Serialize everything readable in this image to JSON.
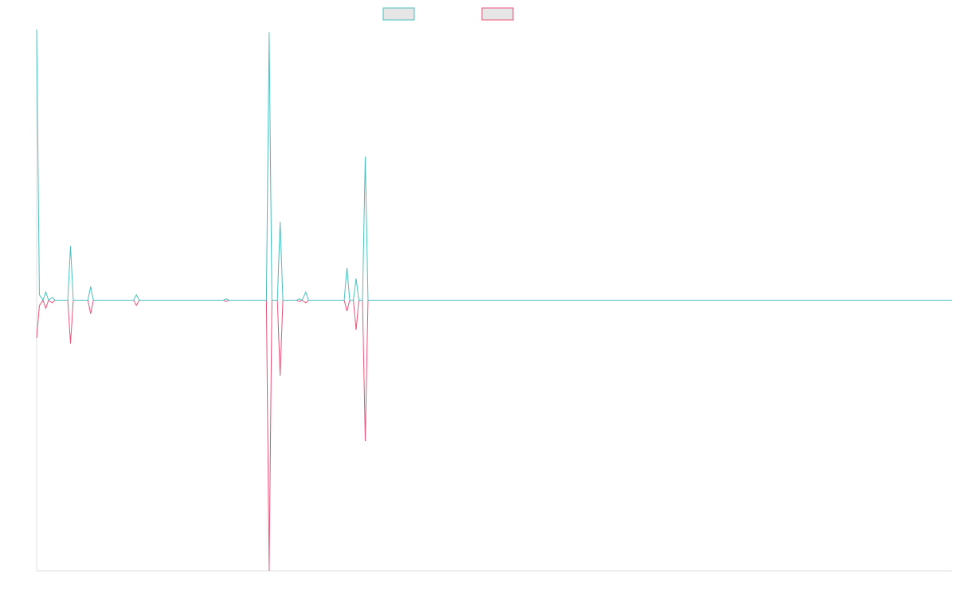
{
  "chart_data": {
    "type": "line",
    "title": "",
    "xlabel": "",
    "ylabel": "",
    "grid": false,
    "legend_position": "top-center",
    "x_range": [
      0,
      100
    ],
    "y_range": [
      -1.0,
      1.0
    ],
    "series": [
      {
        "color": "#4bbfbf",
        "legend_fill": "#e6e6e6",
        "points": [
          [
            0,
            1.0
          ],
          [
            0.3,
            0.02
          ],
          [
            0.7,
            0.0
          ],
          [
            1.0,
            0.03
          ],
          [
            1.3,
            0.0
          ],
          [
            1.7,
            0.01
          ],
          [
            2.0,
            0.0
          ],
          [
            2.6,
            0.0
          ],
          [
            3.4,
            0.0
          ],
          [
            3.7,
            0.2
          ],
          [
            4.0,
            0.0
          ],
          [
            5.6,
            0.0
          ],
          [
            5.9,
            0.05
          ],
          [
            6.2,
            0.0
          ],
          [
            10.6,
            0.0
          ],
          [
            10.9,
            0.02
          ],
          [
            11.2,
            0.0
          ],
          [
            20.4,
            0.0
          ],
          [
            20.7,
            0.005
          ],
          [
            21.0,
            0.0
          ],
          [
            25.1,
            0.0
          ],
          [
            25.4,
            0.99
          ],
          [
            25.7,
            0.0
          ],
          [
            26.3,
            0.0
          ],
          [
            26.6,
            0.29
          ],
          [
            26.9,
            0.0
          ],
          [
            28.4,
            0.0
          ],
          [
            28.7,
            0.005
          ],
          [
            29.0,
            0.0
          ],
          [
            29.4,
            0.03
          ],
          [
            29.7,
            0.0
          ],
          [
            33.6,
            0.0
          ],
          [
            33.9,
            0.12
          ],
          [
            34.2,
            0.0
          ],
          [
            34.6,
            0.0
          ],
          [
            34.9,
            0.08
          ],
          [
            35.2,
            0.0
          ],
          [
            35.6,
            0.0
          ],
          [
            35.9,
            0.53
          ],
          [
            36.2,
            0.0
          ],
          [
            100,
            0.0
          ]
        ]
      },
      {
        "color": "#e8557a",
        "legend_fill": "#e6e6e6",
        "points": [
          [
            0,
            -0.14
          ],
          [
            0.3,
            -0.02
          ],
          [
            0.7,
            0.0
          ],
          [
            1.0,
            -0.03
          ],
          [
            1.3,
            0.0
          ],
          [
            1.7,
            -0.01
          ],
          [
            2.0,
            0.0
          ],
          [
            2.6,
            0.0
          ],
          [
            3.4,
            0.0
          ],
          [
            3.7,
            -0.16
          ],
          [
            4.0,
            0.0
          ],
          [
            5.6,
            0.0
          ],
          [
            5.9,
            -0.05
          ],
          [
            6.2,
            0.0
          ],
          [
            10.6,
            0.0
          ],
          [
            10.9,
            -0.02
          ],
          [
            11.2,
            0.0
          ],
          [
            20.4,
            0.0
          ],
          [
            20.7,
            -0.005
          ],
          [
            21.0,
            0.0
          ],
          [
            25.1,
            0.0
          ],
          [
            25.4,
            -1.0
          ],
          [
            25.7,
            0.0
          ],
          [
            26.3,
            0.0
          ],
          [
            26.6,
            -0.28
          ],
          [
            26.9,
            0.0
          ],
          [
            28.4,
            0.0
          ],
          [
            28.7,
            -0.005
          ],
          [
            29.0,
            0.0
          ],
          [
            29.4,
            -0.01
          ],
          [
            29.7,
            0.0
          ],
          [
            33.6,
            0.0
          ],
          [
            33.9,
            -0.04
          ],
          [
            34.2,
            0.0
          ],
          [
            34.6,
            0.0
          ],
          [
            34.9,
            -0.11
          ],
          [
            35.2,
            0.0
          ],
          [
            35.6,
            0.0
          ],
          [
            35.9,
            -0.52
          ],
          [
            36.2,
            0.0
          ],
          [
            100,
            0.0
          ]
        ]
      }
    ]
  }
}
